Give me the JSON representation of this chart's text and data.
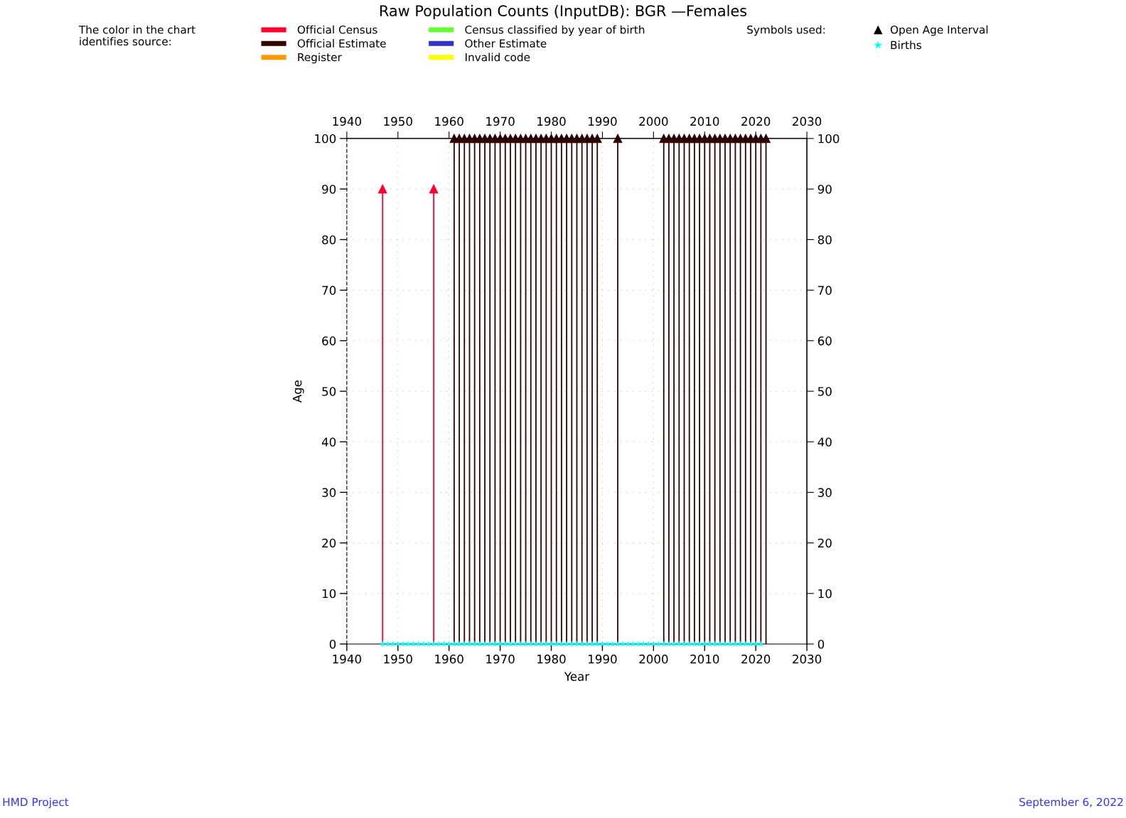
{
  "chart_data": {
    "type": "lollipop",
    "title": "Raw Population Counts (InputDB): BGR —Females",
    "xlabel": "Year",
    "ylabel": "Age",
    "legend_title": "The color in the chart\nidentifies source:",
    "legend": "top",
    "grid": true,
    "marker": "triangle",
    "xlim": [
      1940,
      2030
    ],
    "xticks": [
      1940,
      1950,
      1960,
      1970,
      1980,
      1990,
      2000,
      2010,
      2020,
      2030
    ],
    "x2lim": [
      1940,
      2030
    ],
    "x2ticks": [
      1940,
      1950,
      1960,
      1970,
      1980,
      1990,
      2000,
      2010,
      2020,
      2030
    ],
    "ylim": [
      0,
      100
    ],
    "yticks": [
      0,
      10,
      20,
      30,
      40,
      50,
      60,
      70,
      80,
      90,
      100
    ],
    "y2lim": [
      0,
      100
    ],
    "y2ticks": [
      0,
      10,
      20,
      30,
      40,
      50,
      60,
      70,
      80,
      90,
      100
    ],
    "series": [
      {
        "name": "Official Census",
        "color": "#ff0033",
        "x": [
          1947,
          1957
        ],
        "values": [
          90,
          90
        ]
      },
      {
        "name": "Official Estimate",
        "color": "#330000",
        "x": [
          1961,
          1962,
          1963,
          1964,
          1965,
          1966,
          1967,
          1968,
          1969,
          1970,
          1971,
          1972,
          1973,
          1974,
          1975,
          1976,
          1977,
          1978,
          1979,
          1980,
          1981,
          1982,
          1983,
          1984,
          1985,
          1986,
          1987,
          1988,
          1989,
          1993,
          2002,
          2003,
          2004,
          2005,
          2006,
          2007,
          2008,
          2009,
          2010,
          2011,
          2012,
          2013,
          2014,
          2015,
          2016,
          2017,
          2018,
          2019,
          2020,
          2021,
          2022
        ],
        "values": [
          100,
          100,
          100,
          100,
          100,
          100,
          100,
          100,
          100,
          100,
          100,
          100,
          100,
          100,
          100,
          100,
          100,
          100,
          100,
          100,
          100,
          100,
          100,
          100,
          100,
          100,
          100,
          100,
          100,
          100,
          100,
          100,
          100,
          100,
          100,
          100,
          100,
          100,
          100,
          100,
          100,
          100,
          100,
          100,
          100,
          100,
          100,
          100,
          100,
          100,
          100
        ]
      },
      {
        "name": "Register",
        "color": "#ff9900"
      },
      {
        "name": "Census classified by year of birth",
        "color": "#66ff33"
      },
      {
        "name": "Other Estimate",
        "color": "#3333cc"
      },
      {
        "name": "Invalid code",
        "color": "#ffff00"
      },
      {
        "name": "Open Age Interval",
        "type": "scatter",
        "marker": "triangle",
        "color": "#000000"
      },
      {
        "name": "Births",
        "type": "scatter",
        "marker": "star",
        "color": "#00ffff",
        "x": [
          1947,
          1948,
          1949,
          1950,
          1951,
          1952,
          1953,
          1954,
          1955,
          1956,
          1957,
          1958,
          1959,
          1960,
          1961,
          1962,
          1963,
          1964,
          1965,
          1966,
          1967,
          1968,
          1969,
          1970,
          1971,
          1972,
          1973,
          1974,
          1975,
          1976,
          1977,
          1978,
          1979,
          1980,
          1981,
          1982,
          1983,
          1984,
          1985,
          1986,
          1987,
          1988,
          1989,
          1990,
          1991,
          1992,
          1993,
          1994,
          1995,
          1996,
          1997,
          1998,
          1999,
          2000,
          2001,
          2002,
          2003,
          2004,
          2005,
          2006,
          2007,
          2008,
          2009,
          2010,
          2011,
          2012,
          2013,
          2014,
          2015,
          2016,
          2017,
          2018,
          2019,
          2020,
          2021
        ],
        "values": [
          0,
          0,
          0,
          0,
          0,
          0,
          0,
          0,
          0,
          0,
          0,
          0,
          0,
          0,
          0,
          0,
          0,
          0,
          0,
          0,
          0,
          0,
          0,
          0,
          0,
          0,
          0,
          0,
          0,
          0,
          0,
          0,
          0,
          0,
          0,
          0,
          0,
          0,
          0,
          0,
          0,
          0,
          0,
          0,
          0,
          0,
          0,
          0,
          0,
          0,
          0,
          0,
          0,
          0,
          0,
          0,
          0,
          0,
          0,
          0,
          0,
          0,
          0,
          0,
          0,
          0,
          0,
          0,
          0,
          0,
          0,
          0,
          0,
          0,
          0
        ]
      }
    ],
    "annotations": [
      "Symbols used:",
      "HMD Project",
      "September 6, 2022"
    ]
  }
}
